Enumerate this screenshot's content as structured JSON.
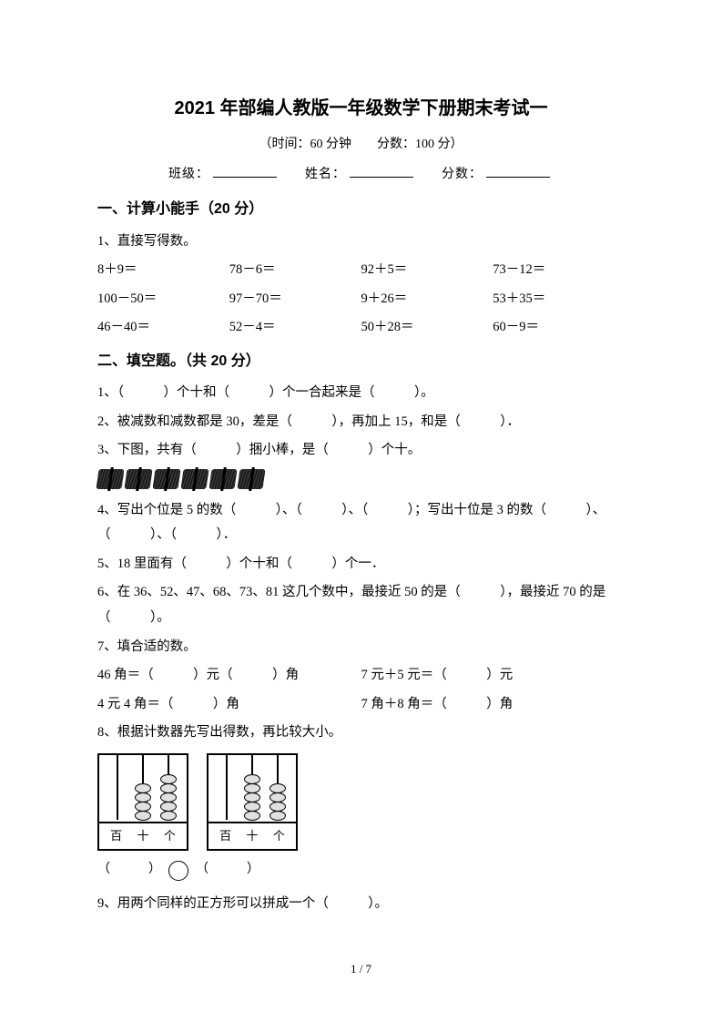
{
  "title": "2021 年部编人教版一年级数学下册期末考试一",
  "subtitle": "（时间：60 分钟　　分数：100 分）",
  "info": {
    "class_label": "班级：",
    "name_label": "姓名：",
    "score_label": "分数："
  },
  "section1": {
    "header": "一、计算小能手（20 分）",
    "q1_label": "1、直接写得数。",
    "rows": [
      [
        "8＋9＝",
        "78－6＝",
        "92＋5＝",
        "73－12＝"
      ],
      [
        "100－50＝",
        "97－70＝",
        "9＋26＝",
        "53＋35＝"
      ],
      [
        "46－40＝",
        "52－4＝",
        "50＋28＝",
        "60－9＝"
      ]
    ]
  },
  "section2": {
    "header": "二、填空题。（共 20 分）",
    "q1": "1、（　　　）个十和（　　　）个一合起来是（　　　）。",
    "q2": "2、被减数和减数都是 30，差是（　　　），再加上 15，和是（　　　）．",
    "q3": "3、下图，共有（　　　）捆小棒，是（　　　）个十。",
    "bundle_count": 6,
    "q4": "4、写出个位是 5 的数（　　　）、（　　　）、（　　　）；写出十位是 3 的数（　　　）、（　　　）、（　　　）．",
    "q5": "5、18 里面有（　　　）个十和（　　　）个一．",
    "q6": "6、在 36、52、47、68、73、81 这几个数中，最接近 50 的是（　　　），最接近 70 的是（　　　）。",
    "q7": "7、填合适的数。",
    "q7_rows": [
      [
        "46 角＝（　　　）元（　　　）角",
        "7 元＋5 元＝（　　　）元"
      ],
      [
        "4 元 4 角＝（　　　）角",
        "7 角＋8 角＝（　　　）角"
      ]
    ],
    "q8": "8、根据计数器先写出得数，再比较大小。",
    "abacus": {
      "labels": [
        "百",
        "十",
        "个"
      ],
      "device1": {
        "hundreds": 0,
        "tens": 4,
        "ones": 5
      },
      "device2": {
        "hundreds": 0,
        "tens": 5,
        "ones": 4
      }
    },
    "compare_left": "（　　　）",
    "compare_right": "（　　　）",
    "q9": "9、用两个同样的正方形可以拼成一个（　　　）。"
  },
  "page_number": "1 / 7",
  "colors": {
    "text": "#000000",
    "background": "#ffffff",
    "bead_fill": "#e0e0e0"
  }
}
